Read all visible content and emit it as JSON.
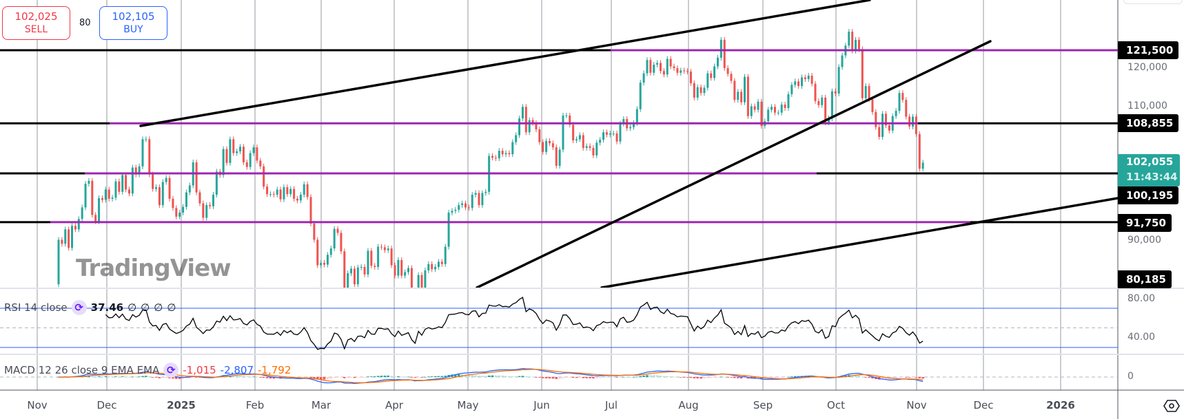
{
  "trade": {
    "sell_price": "102,025",
    "sell_label": "SELL",
    "spread": "80",
    "buy_price": "102,105",
    "buy_label": "BUY"
  },
  "price_axis": {
    "ticks": [
      "120,000",
      "110,000",
      "90,000"
    ],
    "tick_values": [
      120000,
      110000,
      90000
    ],
    "labels": [
      "121,500",
      "108,855",
      "100,195",
      "91,750",
      "80,185"
    ],
    "last_price": "102,055",
    "countdown": "11:43:44",
    "last_price_color": "#26a69a"
  },
  "rsi": {
    "title": "RSI 14 close",
    "value": "37.46",
    "extras": [
      "∅",
      "∅",
      "∅",
      "∅"
    ],
    "axis_labels": [
      "80.00",
      "40.00"
    ],
    "bands": [
      70,
      50,
      30
    ]
  },
  "macd": {
    "title": "MACD 12 26 close 9 EMA EMA",
    "hist_value": "-1,015",
    "macd_value": "-2,807",
    "signal_value": "-1,792",
    "axis_labels": [
      "0"
    ],
    "colors": {
      "hist": "#f23645",
      "macd": "#2962ff",
      "signal": "#ff6d00"
    }
  },
  "time_axis": {
    "labels": [
      "Nov",
      "Dec",
      "2025",
      "Feb",
      "Mar",
      "Apr",
      "May",
      "Jun",
      "Jul",
      "Aug",
      "Sep",
      "Oct",
      "Nov",
      "Dec",
      "2026"
    ]
  },
  "watermark": "TradingView",
  "colors": {
    "up": "#26a69a",
    "down": "#ef5350",
    "level_purple": "#9c27b0",
    "trendline": "#000000"
  },
  "chart_data": {
    "type": "candlestick",
    "title": "",
    "x_start": "2024-11-11",
    "x_end": "2025-11-05",
    "ylim": [
      80185,
      130000
    ],
    "grid": true,
    "horizontal_levels": [
      121500,
      108855,
      100195,
      91750
    ],
    "close": [
      88700,
      88000,
      90500,
      87300,
      91100,
      90500,
      92300,
      94300,
      98400,
      98900,
      93000,
      91900,
      95900,
      95600,
      97400,
      95800,
      96000,
      98800,
      97000,
      99900,
      97400,
      96700,
      101200,
      100000,
      101400,
      106100,
      106100,
      100000,
      97500,
      97800,
      94700,
      98700,
      99400,
      95800,
      94200,
      92700,
      93400,
      94400,
      96900,
      98100,
      102100,
      96900,
      95000,
      92500,
      94700,
      94500,
      96500,
      100500,
      99900,
      104400,
      102000,
      106100,
      103700,
      104000,
      104800,
      102100,
      101300,
      103700,
      104700,
      102400,
      101400,
      97900,
      96600,
      96600,
      96500,
      97400,
      95700,
      97800,
      96600,
      97500,
      95800,
      95500,
      96500,
      98300,
      96100,
      91500,
      88700,
      84300,
      84700,
      84400,
      86100,
      87200,
      90600,
      89900,
      86700,
      78500,
      82900,
      83700,
      81000,
      83900,
      84000,
      82700,
      86800,
      84200,
      84000,
      87500,
      87400,
      86900,
      87200,
      84300,
      82500,
      85200,
      82500,
      83100,
      83800,
      79200,
      76300,
      82600,
      79600,
      83400,
      84500,
      83600,
      84000,
      84900,
      84500,
      87500,
      93400,
      93700,
      93900,
      94700,
      95000,
      94300,
      94200,
      96500,
      96800,
      94700,
      96800,
      97000,
      103200,
      102900,
      102800,
      104100,
      103500,
      103700,
      103500,
      105600,
      106800,
      109700,
      111700,
      107300,
      109400,
      108900,
      107800,
      105600,
      103900,
      105800,
      105400,
      104700,
      101500,
      104300,
      110200,
      110200,
      108600,
      105900,
      106100,
      106800,
      104600,
      104900,
      104600,
      103300,
      105500,
      106000,
      107300,
      106900,
      107100,
      107100,
      105700,
      108800,
      109600,
      108000,
      108200,
      108900,
      111300,
      115900,
      117500,
      119800,
      117600,
      119000,
      119300,
      117900,
      117300,
      120000,
      118700,
      118400,
      117600,
      118000,
      117900,
      117800,
      115800,
      113300,
      115100,
      114100,
      115000,
      117500,
      116700,
      118700,
      120200,
      123300,
      118400,
      117400,
      116200,
      112900,
      114300,
      112500,
      116900,
      110100,
      111800,
      111200,
      112600,
      108400,
      109200,
      111200,
      111700,
      110700,
      110700,
      112100,
      111500,
      113900,
      115500,
      116100,
      115300,
      116800,
      116500,
      117100,
      115700,
      112700,
      112000,
      113300,
      109000,
      109700,
      114400,
      114000,
      118600,
      120600,
      122300,
      124700,
      121400,
      123300,
      121700,
      113200,
      115300,
      113000,
      110800,
      108200,
      106500,
      110500,
      108500,
      107600,
      110100,
      111000,
      114100,
      112900,
      110000,
      108300,
      110000,
      107000,
      101000,
      102055
    ],
    "first_open": 81000
  }
}
